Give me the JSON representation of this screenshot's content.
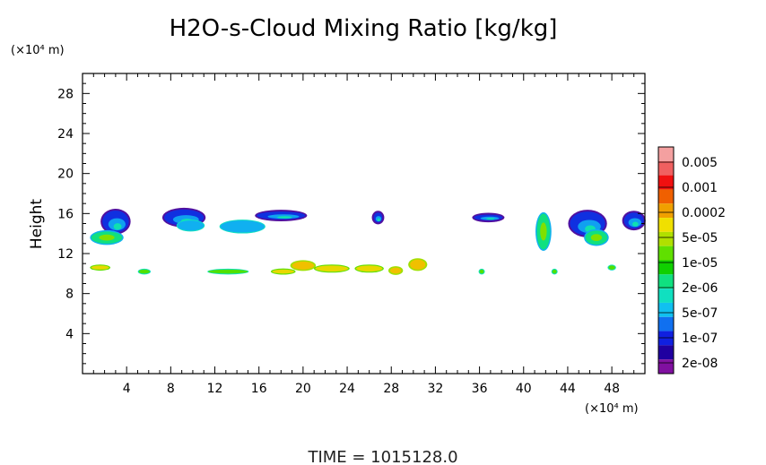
{
  "chart_data": {
    "type": "heatmap",
    "title": "H2O-s-Cloud Mixing Ratio [kg/kg]",
    "ylabel": "Height",
    "x_unit": "(×10⁴ m)",
    "y_unit": "(×10⁴ m)",
    "footer": "TIME  =  1015128.0",
    "xlim": [
      0,
      51
    ],
    "ylim": [
      0,
      30
    ],
    "x_ticks": [
      4,
      8,
      12,
      16,
      20,
      24,
      28,
      32,
      36,
      40,
      44,
      48
    ],
    "y_ticks": [
      4,
      8,
      12,
      16,
      20,
      24,
      28
    ],
    "colorbar": {
      "labels": [
        "0.005",
        "0.001",
        "0.0002",
        "5e-05",
        "1e-05",
        "2e-06",
        "5e-07",
        "1e-07",
        "2e-08"
      ],
      "colors": [
        "#f4a0a0",
        "#f06060",
        "#f01010",
        "#f06000",
        "#f0a000",
        "#f0e000",
        "#b0e000",
        "#60e000",
        "#10d000",
        "#10e080",
        "#10e0c0",
        "#10c0f0",
        "#1070f0",
        "#1020e0",
        "#2000a0",
        "#8010a0"
      ]
    },
    "cloud_patches": [
      {
        "x": 3.0,
        "y": 15.2,
        "rx": 1.2,
        "ry": 1.1,
        "level": "1e-07"
      },
      {
        "x": 2.2,
        "y": 13.6,
        "rx": 1.4,
        "ry": 0.6,
        "level": "2e-06"
      },
      {
        "x": 9.2,
        "y": 15.6,
        "rx": 1.8,
        "ry": 0.8,
        "level": "1e-07"
      },
      {
        "x": 9.8,
        "y": 14.8,
        "rx": 1.2,
        "ry": 0.5,
        "level": "5e-07"
      },
      {
        "x": 14.5,
        "y": 14.7,
        "rx": 2.0,
        "ry": 0.6,
        "level": "5e-07"
      },
      {
        "x": 18.0,
        "y": 15.8,
        "rx": 2.2,
        "ry": 0.4,
        "level": "1e-07"
      },
      {
        "x": 26.8,
        "y": 15.6,
        "rx": 0.4,
        "ry": 0.5,
        "level": "1e-07"
      },
      {
        "x": 36.8,
        "y": 15.6,
        "rx": 1.3,
        "ry": 0.3,
        "level": "1e-07"
      },
      {
        "x": 41.8,
        "y": 14.2,
        "rx": 0.6,
        "ry": 1.8,
        "level": "2e-06"
      },
      {
        "x": 45.8,
        "y": 15.0,
        "rx": 1.6,
        "ry": 1.2,
        "level": "1e-07"
      },
      {
        "x": 46.6,
        "y": 13.6,
        "rx": 1.0,
        "ry": 0.7,
        "level": "2e-06"
      },
      {
        "x": 50.0,
        "y": 15.3,
        "rx": 0.9,
        "ry": 0.8,
        "level": "1e-07"
      },
      {
        "x": 1.6,
        "y": 10.6,
        "rx": 0.8,
        "ry": 0.2,
        "level": "5e-05"
      },
      {
        "x": 5.6,
        "y": 10.2,
        "rx": 0.5,
        "ry": 0.2,
        "level": "1e-05"
      },
      {
        "x": 13.2,
        "y": 10.2,
        "rx": 1.8,
        "ry": 0.2,
        "level": "1e-05"
      },
      {
        "x": 18.2,
        "y": 10.2,
        "rx": 1.0,
        "ry": 0.2,
        "level": "5e-05"
      },
      {
        "x": 20.0,
        "y": 10.8,
        "rx": 1.0,
        "ry": 0.4,
        "level": "0.0002"
      },
      {
        "x": 22.6,
        "y": 10.5,
        "rx": 1.5,
        "ry": 0.3,
        "level": "5e-05"
      },
      {
        "x": 26.0,
        "y": 10.5,
        "rx": 1.2,
        "ry": 0.3,
        "level": "5e-05"
      },
      {
        "x": 28.4,
        "y": 10.3,
        "rx": 0.5,
        "ry": 0.3,
        "level": "0.0002"
      },
      {
        "x": 30.4,
        "y": 10.9,
        "rx": 0.7,
        "ry": 0.5,
        "level": "0.0002"
      },
      {
        "x": 36.2,
        "y": 10.2,
        "rx": 0.2,
        "ry": 0.2,
        "level": "1e-05"
      },
      {
        "x": 42.8,
        "y": 10.2,
        "rx": 0.2,
        "ry": 0.2,
        "level": "1e-05"
      },
      {
        "x": 48.0,
        "y": 10.6,
        "rx": 0.3,
        "ry": 0.2,
        "level": "1e-05"
      }
    ]
  }
}
